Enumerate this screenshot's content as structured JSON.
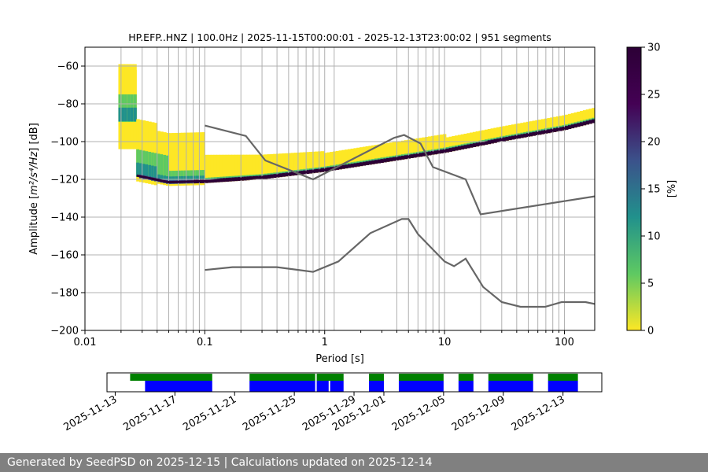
{
  "chart_data": {
    "type": "heatmap",
    "title": "HP.EFP..HNZ | 100.0Hz | 2025-11-15T00:00:01 - 2025-12-13T23:00:02 | 951 segments",
    "xlabel": "Period [s]",
    "ylabel_prefix": "Amplitude [",
    "ylabel_math": "m²/s⁴/Hz",
    "ylabel_suffix": "] [dB]",
    "xscale": "log",
    "xlim": [
      0.01,
      179
    ],
    "ylim": [
      -200,
      -50
    ],
    "xticks": [
      {
        "v": 0.01,
        "label": "0.01"
      },
      {
        "v": 0.1,
        "label": "0.1"
      },
      {
        "v": 1,
        "label": "1"
      },
      {
        "v": 10,
        "label": "10"
      },
      {
        "v": 100,
        "label": "100"
      }
    ],
    "yticks": [
      {
        "v": -60,
        "label": "−60"
      },
      {
        "v": -80,
        "label": "−80"
      },
      {
        "v": -100,
        "label": "−100"
      },
      {
        "v": -120,
        "label": "−120"
      },
      {
        "v": -140,
        "label": "−140"
      },
      {
        "v": -160,
        "label": "−160"
      },
      {
        "v": -180,
        "label": "−180"
      },
      {
        "v": -200,
        "label": "−200"
      }
    ],
    "grid_periods": [
      0.02,
      0.03,
      0.04,
      0.05,
      0.06,
      0.07,
      0.08,
      0.09,
      0.1,
      0.2,
      0.3,
      0.4,
      0.5,
      0.6,
      0.7,
      0.8,
      0.9,
      1,
      1.2,
      4,
      5,
      6,
      7,
      8,
      9,
      10,
      20,
      30,
      40,
      50,
      60,
      70,
      80,
      90,
      100
    ],
    "grid_y": [
      -60,
      -80,
      -100,
      -120,
      -140,
      -160,
      -180
    ],
    "colorbar": {
      "label": "[%]",
      "min": 0,
      "max": 30,
      "ticks": [
        {
          "v": 0,
          "label": "0"
        },
        {
          "v": 5,
          "label": "5"
        },
        {
          "v": 10,
          "label": "10"
        },
        {
          "v": 15,
          "label": "15"
        },
        {
          "v": 20,
          "label": "20"
        },
        {
          "v": 25,
          "label": "25"
        },
        {
          "v": 30,
          "label": "30"
        }
      ],
      "colors": [
        "#fde725",
        "#5ec962",
        "#21918c",
        "#3b528b",
        "#440154",
        "#2c0036"
      ]
    },
    "series": [
      {
        "color": "#666666",
        "points": [
          [
            0.1,
            -91.5
          ],
          [
            0.22,
            -97
          ],
          [
            0.32,
            -110
          ],
          [
            0.8,
            -120
          ],
          [
            3.8,
            -98
          ],
          [
            4.6,
            -96.5
          ],
          [
            6.3,
            -101
          ],
          [
            8,
            -113.5
          ],
          [
            15,
            -120
          ],
          [
            20,
            -138.5
          ],
          [
            179,
            -129
          ]
        ]
      },
      {
        "color": "#666666",
        "points": [
          [
            0.1,
            -168
          ],
          [
            0.17,
            -166.5
          ],
          [
            0.4,
            -166.5
          ],
          [
            0.8,
            -169
          ],
          [
            1.3,
            -163.5
          ],
          [
            2.4,
            -148.5
          ],
          [
            4.4,
            -141
          ],
          [
            5,
            -141
          ],
          [
            6,
            -149
          ],
          [
            10,
            -163.5
          ],
          [
            12,
            -166
          ],
          [
            15,
            -162
          ],
          [
            21,
            -177
          ],
          [
            30,
            -185
          ],
          [
            43,
            -187.5
          ],
          [
            69,
            -187.5
          ],
          [
            95,
            -185
          ],
          [
            150,
            -185
          ],
          [
            179,
            -186
          ]
        ]
      }
    ],
    "mode_line": [
      [
        0.027,
        -118
      ],
      [
        0.05,
        -121.5
      ],
      [
        0.1,
        -121
      ],
      [
        0.3,
        -119
      ],
      [
        1,
        -115
      ],
      [
        4,
        -109
      ],
      [
        10,
        -105
      ],
      [
        30,
        -99
      ],
      [
        100,
        -93
      ],
      [
        179,
        -89
      ]
    ],
    "availability": {
      "ticks": [
        {
          "v": 0,
          "label": "2025-11-13"
        },
        {
          "v": 4,
          "label": "2025-11-17"
        },
        {
          "v": 8,
          "label": "2025-11-21"
        },
        {
          "v": 12,
          "label": "2025-11-25"
        },
        {
          "v": 16,
          "label": "2025-11-29"
        },
        {
          "v": 18,
          "label": "2025-12-01"
        },
        {
          "v": 22,
          "label": "2025-12-05"
        },
        {
          "v": 26,
          "label": "2025-12-09"
        },
        {
          "v": 30,
          "label": "2025-12-13"
        }
      ],
      "xlim": [
        -0.55,
        32.6
      ],
      "green": [
        [
          1.0,
          6.5
        ],
        [
          9.0,
          13.4
        ],
        [
          13.5,
          15.3
        ],
        [
          17.0,
          18.0
        ],
        [
          19.0,
          22.0
        ],
        [
          23.0,
          24.0
        ],
        [
          25.0,
          28.0
        ],
        [
          29.0,
          31.0
        ]
      ],
      "blue": [
        [
          2.0,
          6.5
        ],
        [
          9.0,
          13.4
        ],
        [
          13.5,
          14.3
        ],
        [
          14.4,
          15.3
        ],
        [
          17.0,
          18.0
        ],
        [
          19.0,
          22.0
        ],
        [
          23.0,
          24.0
        ],
        [
          25.0,
          28.0
        ],
        [
          29.0,
          31.0
        ]
      ]
    }
  },
  "footer": {
    "text": "Generated by SeedPSD on 2025-12-15 | Calculations updated on 2025-12-14"
  }
}
